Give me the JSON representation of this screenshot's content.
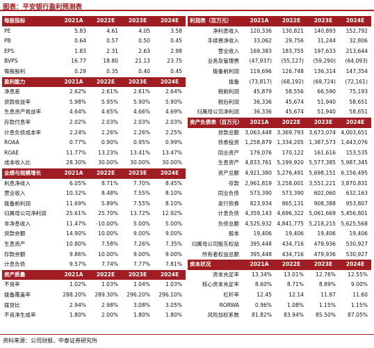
{
  "title": "图表：平安银行盈利预测表",
  "source": "资料来源：公司财报，中泰证券研究所",
  "left_sections": [
    {
      "header": "每股指标",
      "cols": [
        "2021A",
        "2022E",
        "2023E",
        "2024E"
      ],
      "rows": [
        {
          "label": "PE",
          "v": [
            "5.83",
            "4.61",
            "4.05",
            "3.58"
          ]
        },
        {
          "label": "PB",
          "v": [
            "0.64",
            "0.57",
            "0.50",
            "0.45"
          ]
        },
        {
          "label": "EPS",
          "v": [
            "1.83",
            "2.31",
            "2.63",
            "2.98"
          ]
        },
        {
          "label": "BVPS",
          "v": [
            "16.77",
            "18.80",
            "21.13",
            "23.75"
          ]
        },
        {
          "label": "每股股利",
          "v": [
            "0.29",
            "0.35",
            "0.40",
            "0.45"
          ]
        }
      ]
    },
    {
      "header": "盈利能力",
      "cols": [
        "2021A",
        "2022E",
        "2023E",
        "2024E"
      ],
      "rows": [
        {
          "label": "净息差",
          "v": [
            "2.62%",
            "2.61%",
            "2.61%",
            "2.64%"
          ]
        },
        {
          "label": "贷款收益率",
          "v": [
            "5.98%",
            "5.95%",
            "5.90%",
            "5.90%"
          ]
        },
        {
          "label": "生息资产收益率",
          "v": [
            "4.64%",
            "4.65%",
            "4.66%",
            "4.69%"
          ]
        },
        {
          "label": "存款付息率",
          "v": [
            "2.02%",
            "2.03%",
            "2.03%",
            "2.03%"
          ]
        },
        {
          "label": "计息负债成本率",
          "v": [
            "2.24%",
            "2.26%",
            "2.26%",
            "2.25%"
          ]
        },
        {
          "label": "ROAA",
          "v": [
            "0.77%",
            "0.90%",
            "0.95%",
            "0.99%"
          ]
        },
        {
          "label": "ROAE",
          "v": [
            "11.77%",
            "13.23%",
            "13.41%",
            "13.47%"
          ]
        },
        {
          "label": "成本收入比",
          "v": [
            "28.30%",
            "30.00%",
            "30.00%",
            "30.00%"
          ]
        }
      ]
    },
    {
      "header": "业绩与规模增长",
      "cols": [
        "2021A",
        "2022E",
        "2023E",
        "2024E"
      ],
      "rows": [
        {
          "label": "利息净收入",
          "v": [
            "6.05%",
            "8.71%",
            "7.70%",
            "8.45%"
          ]
        },
        {
          "label": "营业收入",
          "v": [
            "10.32%",
            "8.48%",
            "7.55%",
            "8.10%"
          ]
        },
        {
          "label": "拨备前利润",
          "v": [
            "11.69%",
            "5.89%",
            "7.55%",
            "8.10%"
          ]
        },
        {
          "label": "归属母公司净利润",
          "v": [
            "25.61%",
            "25.70%",
            "13.72%",
            "12.92%"
          ]
        },
        {
          "label": "非净息收入",
          "v": [
            "11.47%",
            "-10.00%",
            "5.00%",
            "5.00%"
          ]
        },
        {
          "label": "贷款余额",
          "v": [
            "14.90%",
            "10.00%",
            "9.00%",
            "9.00%"
          ]
        },
        {
          "label": "生息资产",
          "v": [
            "10.80%",
            "7.58%",
            "7.26%",
            "7.35%"
          ]
        },
        {
          "label": "存款余额",
          "v": [
            "9.86%",
            "10.00%",
            "9.00%",
            "9.00%"
          ]
        },
        {
          "label": "计息负债",
          "v": [
            "9.57%",
            "7.74%",
            "7.77%",
            "7.81%"
          ]
        }
      ]
    },
    {
      "header": "资产质量",
      "cols": [
        "2021A",
        "2022E",
        "2023E",
        "2024E"
      ],
      "rows": [
        {
          "label": "不良率",
          "v": [
            "1.02%",
            "1.03%",
            "1.04%",
            "1.03%"
          ]
        },
        {
          "label": "拨备覆盖率",
          "v": [
            "288.20%",
            "289.30%",
            "296.20%",
            "296.10%"
          ]
        },
        {
          "label": "拨贷比",
          "v": [
            "2.94%",
            "2.98%",
            "3.08%",
            "3.05%"
          ]
        },
        {
          "label": "不良净生成率",
          "v": [
            "1.80%",
            "2.00%",
            "1.80%",
            "1.80%"
          ]
        }
      ]
    }
  ],
  "right_sections": [
    {
      "header": "利润表（百万元）",
      "cols": [
        "2021A",
        "2022E",
        "2023E",
        "2024E"
      ],
      "rows": [
        {
          "label": "净利息收入",
          "v": [
            "120,336",
            "130,821",
            "140,893",
            "152,792"
          ]
        },
        {
          "label": "手续费净收入",
          "v": [
            "33,062",
            "29,756",
            "31,244",
            "32,806"
          ]
        },
        {
          "label": "营业收入",
          "v": [
            "169,383",
            "183,755",
            "197,633",
            "213,644"
          ]
        },
        {
          "label": "业务及管理费",
          "v": [
            "(47,937)",
            "(55,127)",
            "(59,290)",
            "(64,093)"
          ]
        },
        {
          "label": "拨备前利润",
          "v": [
            "119,696",
            "126,748",
            "136,314",
            "147,354"
          ]
        },
        {
          "label": "拨备",
          "v": [
            "(73,817)",
            "(68,192)",
            "(69,724)",
            "(72,161)"
          ]
        },
        {
          "label": "税前利润",
          "v": [
            "45,879",
            "58,556",
            "66,590",
            "75,193"
          ]
        },
        {
          "label": "税后利润",
          "v": [
            "36,336",
            "45,674",
            "51,940",
            "58,651"
          ]
        },
        {
          "label": "归属母公司净利润",
          "v": [
            "36,336",
            "45,674",
            "51,940",
            "58,651"
          ]
        }
      ]
    },
    {
      "header": "资产负债表（百万元）",
      "cols": [
        "2021A",
        "2022E",
        "2023E",
        "2024E"
      ],
      "rows": [
        {
          "label": "贷款总额",
          "v": [
            "3,063,448",
            "3,369,793",
            "3,673,074",
            "4,003,651"
          ]
        },
        {
          "label": "债券投资",
          "v": [
            "1,258,879",
            "1,334,205",
            "1,387,573",
            "1,443,076"
          ]
        },
        {
          "label": "同业资产",
          "v": [
            "179,076",
            "170,122",
            "161,616",
            "153,535"
          ]
        },
        {
          "label": "生息资产",
          "v": [
            "4,833,761",
            "5,199,920",
            "5,577,385",
            "5,987,345"
          ]
        },
        {
          "label": "资产总额",
          "v": [
            "4,921,380",
            "5,276,491",
            "5,698,151",
            "6,156,495"
          ]
        },
        {
          "label": "存款",
          "v": [
            "2,961,819",
            "3,258,001",
            "3,551,221",
            "3,870,831"
          ]
        },
        {
          "label": "同业负债",
          "v": [
            "573,390",
            "573,390",
            "602,060",
            "632,163"
          ]
        },
        {
          "label": "发行债券",
          "v": [
            "823,934",
            "865,131",
            "908,388",
            "953,807"
          ]
        },
        {
          "label": "计息负债",
          "v": [
            "4,359,143",
            "4,696,322",
            "5,061,669",
            "5,456,801"
          ]
        },
        {
          "label": "负债总额",
          "v": [
            "4,525,932",
            "4,841,775",
            "5,218,215",
            "5,625,568"
          ]
        },
        {
          "label": "股本",
          "v": [
            "19,406",
            "19,406",
            "19,406",
            "19,406"
          ]
        },
        {
          "label": "归属母公司股东权益",
          "v": [
            "395,448",
            "434,716",
            "479,936",
            "530,927"
          ]
        },
        {
          "label": "所有者权益总额",
          "v": [
            "395,448",
            "434,716",
            "479,936",
            "530,927"
          ]
        }
      ]
    },
    {
      "header": "资本状况",
      "cols": [
        "2021A",
        "2022E",
        "2023E",
        "2024E"
      ],
      "rows": [
        {
          "label": "资本充足率",
          "v": [
            "13.34%",
            "13.01%",
            "12.76%",
            "12.55%"
          ]
        },
        {
          "label": "核心资本充足率",
          "v": [
            "8.60%",
            "8.71%",
            "8.89%",
            "9.00%"
          ]
        },
        {
          "label": "杠杆率",
          "v": [
            "12.45",
            "12.14",
            "11.87",
            "11.60"
          ]
        },
        {
          "label": "RORWA",
          "v": [
            "0.96%",
            "1.08%",
            "1.15%",
            "1.15%"
          ]
        },
        {
          "label": "风险加权系数",
          "v": [
            "81.82%",
            "83.94%",
            "85.50%",
            "87.05%"
          ]
        }
      ]
    }
  ]
}
